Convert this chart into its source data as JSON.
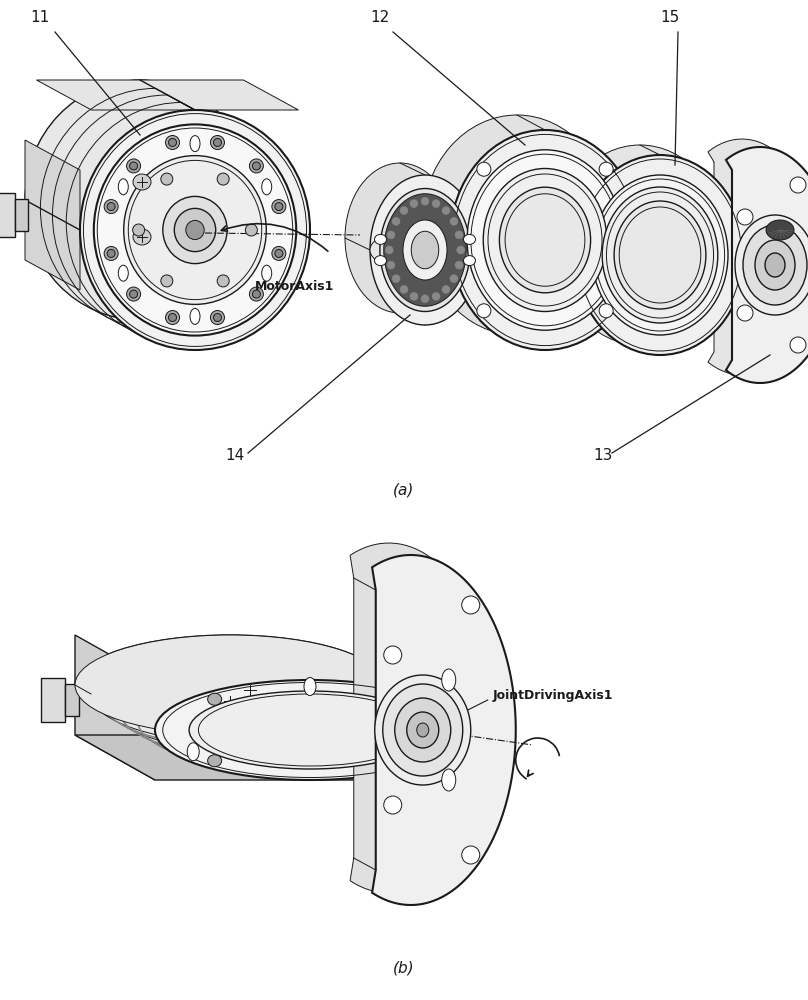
{
  "bg_color": "#ffffff",
  "line_color": "#1a1a1a",
  "fig_width": 8.08,
  "fig_height": 10.0,
  "dpi": 100,
  "panel_a_label": "(a)",
  "panel_b_label": "(b)",
  "motor_axis_label": "MotorAxis1",
  "joint_axis_label": "JointDrivingAxis1"
}
